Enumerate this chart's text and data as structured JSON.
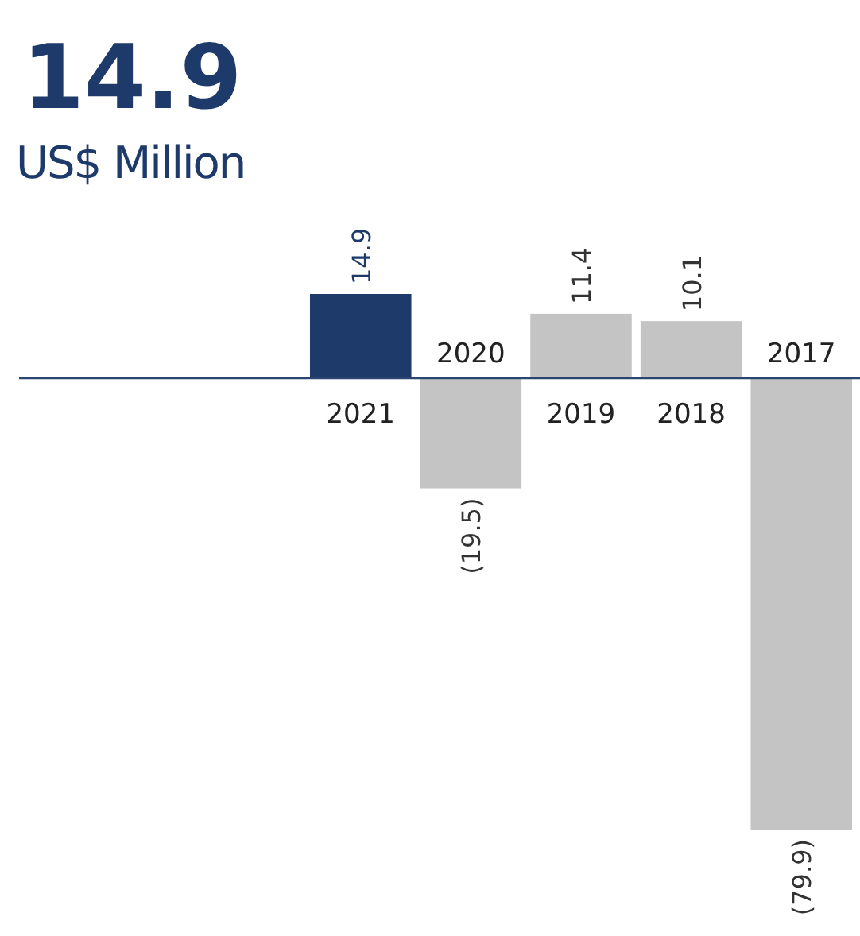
{
  "chart_data": {
    "type": "bar",
    "title": "14.9",
    "subtitle": "US$ Million",
    "categories": [
      "2021",
      "2020",
      "2019",
      "2018",
      "2017"
    ],
    "values": [
      14.9,
      -19.5,
      11.4,
      10.1,
      -79.9
    ],
    "colors": [
      "#1d3a6b",
      "#c4c4c4",
      "#c4c4c4",
      "#c4c4c4",
      "#c4c4c4"
    ],
    "value_labels": [
      "14.9",
      "(19.5)",
      "11.4",
      "10.1",
      "(79.9)"
    ]
  }
}
